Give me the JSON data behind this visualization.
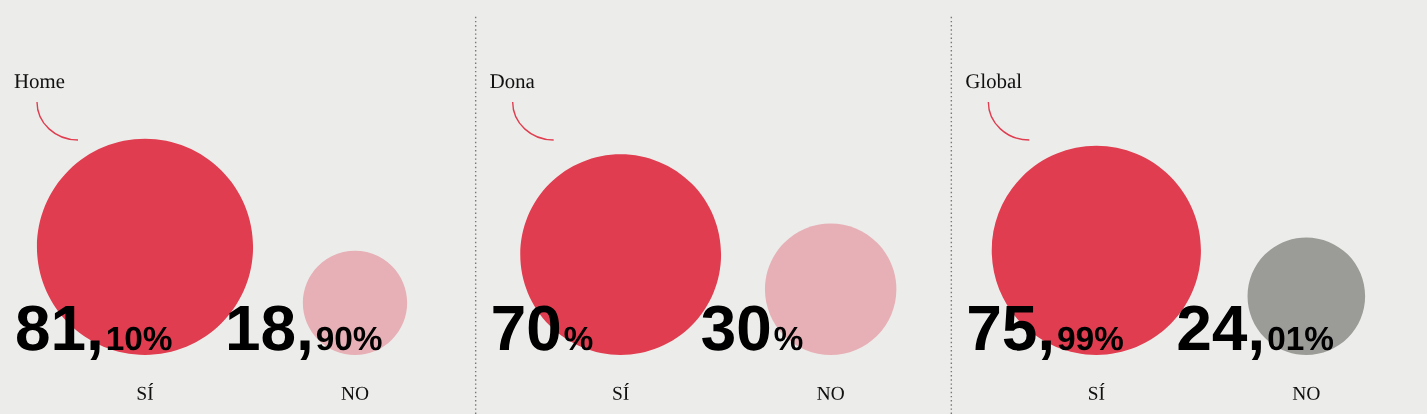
{
  "chart_data": [
    {
      "type": "other",
      "title": "Home",
      "categories": [
        "SÍ",
        "NO"
      ],
      "values": [
        81.1,
        18.9
      ],
      "value_labels": [
        "81,10%",
        "18,90%"
      ],
      "colors": [
        "#e03d50",
        "#e6b0b6"
      ]
    },
    {
      "type": "other",
      "title": "Dona",
      "categories": [
        "SÍ",
        "NO"
      ],
      "values": [
        70,
        30
      ],
      "value_labels": [
        "70%",
        "30%"
      ],
      "colors": [
        "#e03d50",
        "#e6b0b6"
      ]
    },
    {
      "type": "other",
      "title": "Global",
      "categories": [
        "SÍ",
        "NO"
      ],
      "values": [
        75.99,
        24.01
      ],
      "value_labels": [
        "75,99%",
        "24,01%"
      ],
      "colors": [
        "#e03d50",
        "#9b9c98"
      ]
    }
  ]
}
